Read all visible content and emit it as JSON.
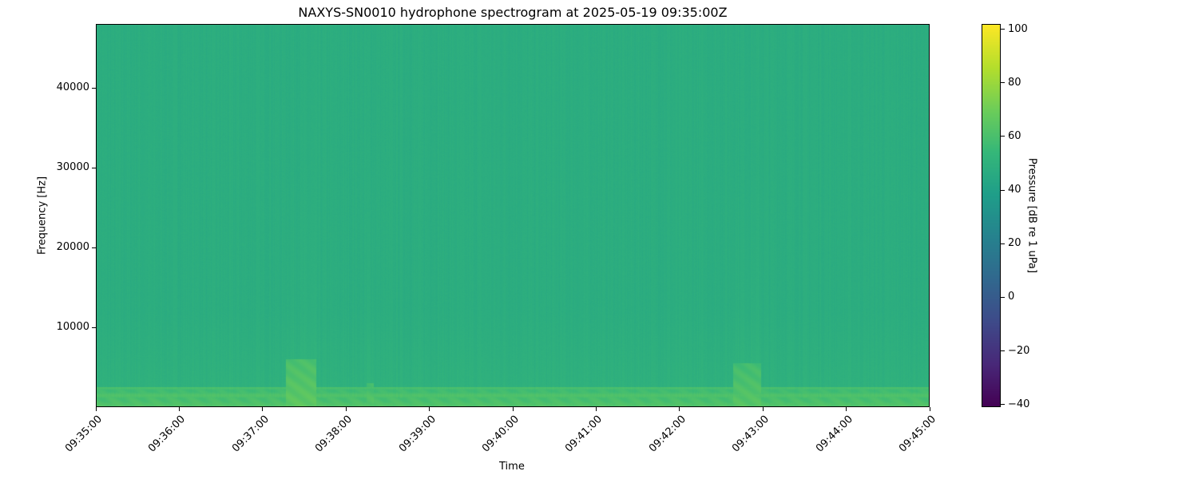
{
  "chart_data": {
    "type": "heatmap",
    "title": "NAXYS-SN0010 hydrophone spectrogram at 2025-05-19 09:35:00Z",
    "xlabel": "Time",
    "ylabel": "Frequency [Hz]",
    "x_ticks": [
      "09:35:00",
      "09:36:00",
      "09:37:00",
      "09:38:00",
      "09:39:00",
      "09:40:00",
      "09:41:00",
      "09:42:00",
      "09:43:00",
      "09:44:00",
      "09:45:00"
    ],
    "xlim": [
      "09:35:00",
      "09:45:00"
    ],
    "y_ticks": [
      10000,
      20000,
      30000,
      40000
    ],
    "ylim": [
      0,
      48000
    ],
    "colormap": "viridis",
    "colorbar": {
      "label": "Pressure [dB re 1 uPa]",
      "ticks": [
        -40,
        -20,
        0,
        20,
        40,
        60,
        80,
        100
      ],
      "range": [
        -41,
        102
      ]
    },
    "background_level_db": 48,
    "features": [
      {
        "start": "09:35:00",
        "end": "09:45:00",
        "freq_max": 2500,
        "level_db": 62
      },
      {
        "start": "09:37:16",
        "end": "09:37:38",
        "freq_max": 6000,
        "level_db": 66
      },
      {
        "start": "09:38:14",
        "end": "09:38:19",
        "freq_max": 3000,
        "level_db": 64
      },
      {
        "start": "09:42:38",
        "end": "09:42:58",
        "freq_max": 5500,
        "level_db": 64
      }
    ]
  }
}
